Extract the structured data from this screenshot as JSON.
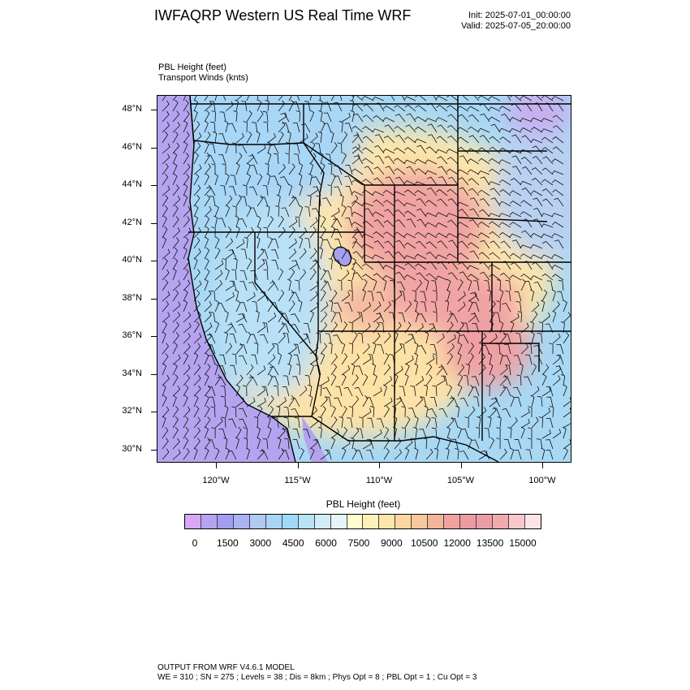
{
  "header": {
    "title": "IWFAQRP Western US Real Time WRF",
    "init": "Init: 2025-07-01_00:00:00",
    "valid": "Valid: 2025-07-05_20:00:00"
  },
  "field": {
    "line1": "PBL Height   (feet)",
    "line2": "Transport Winds   (knts)"
  },
  "map": {
    "lat_labels": [
      "48°N",
      "46°N",
      "44°N",
      "42°N",
      "40°N",
      "38°N",
      "36°N",
      "34°N",
      "32°N",
      "30°N"
    ],
    "lon_labels": [
      "120°W",
      "115°W",
      "110°W",
      "105°W",
      "100°W"
    ]
  },
  "colorbar": {
    "title": "PBL Height  (feet)",
    "labels": [
      "0",
      "1500",
      "3000",
      "4500",
      "6000",
      "7500",
      "9000",
      "10500",
      "12000",
      "13500",
      "15000"
    ],
    "colors": [
      "#d8a8f4",
      "#b6a2f2",
      "#a39df2",
      "#aab4f2",
      "#b0caf4",
      "#a8d4f6",
      "#9edaf8",
      "#b8e2f8",
      "#d0ecf8",
      "#e6f4f8",
      "#fefed0",
      "#fff0b8",
      "#fee6a8",
      "#fcd8a0",
      "#f8c89a",
      "#f4b498",
      "#f2a0a0",
      "#ee9aa0",
      "#ec9ca6",
      "#f0aab0",
      "#f6c8cc",
      "#fce4e6"
    ]
  },
  "footer": {
    "line1": "OUTPUT FROM WRF V4.6.1 MODEL",
    "line2": "WE = 310 ; SN = 275 ; Levels = 38 ; Dis = 8km ; Phys Opt = 8 ; PBL Opt = 1 ; Cu Opt = 3"
  }
}
